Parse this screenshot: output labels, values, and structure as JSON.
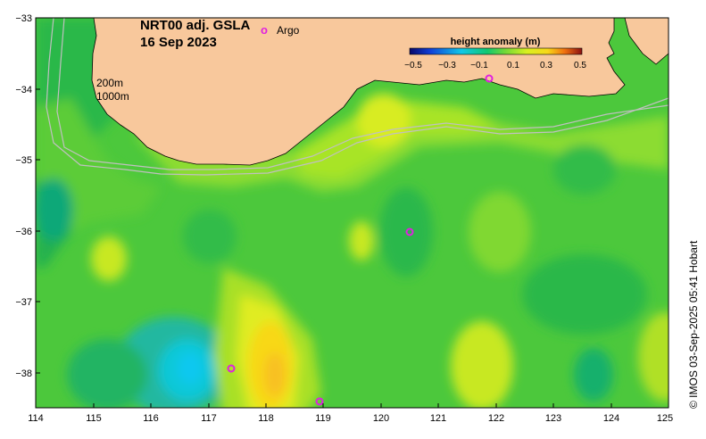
{
  "map": {
    "title_line1": "NRT00 adj. GSLA",
    "title_line2": "16 Sep 2023",
    "argo_symbol": "o",
    "argo_label": "Argo",
    "contour_labels": [
      "200m",
      "1000m"
    ],
    "credit": "© IMOS 03-Sep-2025 05:41 Hobart",
    "lon_ticks": [
      "114",
      "115",
      "116",
      "117",
      "118",
      "119",
      "120",
      "121",
      "122",
      "123",
      "124",
      "125"
    ],
    "lat_ticks": [
      "−33",
      "−34",
      "−35",
      "−36",
      "−37",
      "−38"
    ],
    "colorbar": {
      "title": "height anomaly (m)",
      "ticks": [
        "−0.5",
        "−0.3",
        "−0.1",
        "0.1",
        "0.3",
        "0.5"
      ],
      "range": [
        -0.5,
        0.5
      ],
      "colors": [
        "#08086a",
        "#1040d8",
        "#10c8e8",
        "#10c870",
        "#70d838",
        "#d8f020",
        "#f8d818",
        "#f07010",
        "#8a1010"
      ]
    },
    "colors": {
      "land": "#f8c89c",
      "ocean_base": "#4cc83c",
      "argo_marker": "#e020e0",
      "contour_line": "#b8b8b8"
    }
  }
}
